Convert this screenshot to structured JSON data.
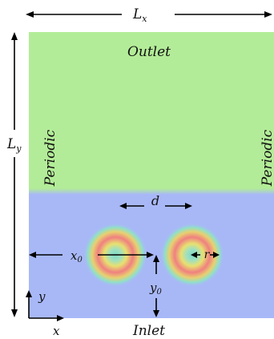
{
  "labels": {
    "lx": "L",
    "lx_sub": "x",
    "ly": "L",
    "ly_sub": "y",
    "outlet": "Outlet",
    "inlet": "Inlet",
    "periodic_left": "Periodic",
    "periodic_right": "Periodic",
    "d": "d",
    "x0": "x",
    "x0_sub": "0",
    "y0": "y",
    "y0_sub": "0",
    "r": "r",
    "axis_x": "x",
    "axis_y": "y"
  },
  "colors": {
    "upper_fluid": "#b3ec98",
    "lower_fluid": "#a8b8f7",
    "ring_outer": "#7fd8c8",
    "ring_mid": "#e8e070",
    "ring_peak": "#f08080"
  }
}
